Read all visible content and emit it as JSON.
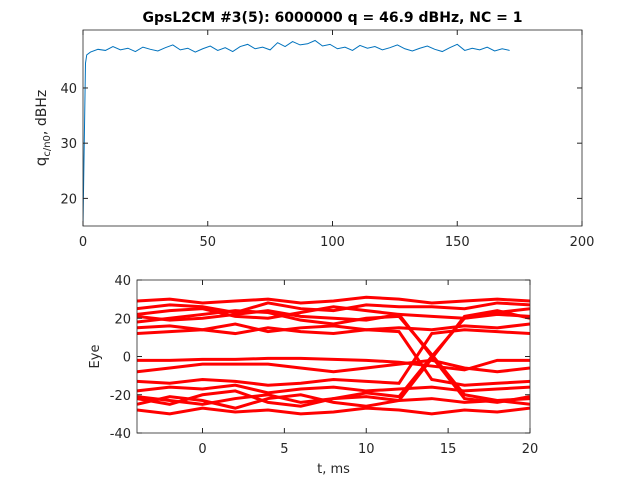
{
  "chart_data": [
    {
      "type": "line",
      "title": "GpsL2CM #3(5): 6000000 q = 46.9 dBHz,  NC = 1",
      "ylabel": {
        "main": "q",
        "sub": "c/n0",
        "rest": ", dBHz"
      },
      "color": "#0072bd",
      "x": [
        0,
        0.5,
        1,
        1.5,
        3,
        6,
        9,
        12,
        15,
        18,
        21,
        24,
        27,
        30,
        33,
        36,
        39,
        42,
        45,
        48,
        51,
        54,
        57,
        60,
        63,
        66,
        69,
        72,
        75,
        78,
        81,
        84,
        87,
        90,
        93,
        96,
        99,
        102,
        105,
        108,
        111,
        114,
        117,
        120,
        123,
        126,
        129,
        132,
        135,
        138,
        141,
        144,
        147,
        150,
        153,
        156,
        159,
        162,
        165,
        168,
        171
      ],
      "values": [
        15.5,
        30,
        44.5,
        46,
        46.5,
        47,
        46.8,
        47.5,
        46.9,
        47.2,
        46.6,
        47.4,
        47,
        46.7,
        47.3,
        47.8,
        46.9,
        47.2,
        46.5,
        47.1,
        47.6,
        46.8,
        47.3,
        46.6,
        47.5,
        47.9,
        47.1,
        47.4,
        46.9,
        48.2,
        47.5,
        48.4,
        47.8,
        48,
        48.6,
        47.6,
        47.9,
        47.1,
        47.4,
        46.8,
        47.7,
        47.2,
        47.5,
        46.9,
        47.3,
        47.8,
        47.1,
        46.7,
        47.2,
        47.6,
        47,
        46.6,
        47.3,
        47.9,
        46.8,
        47.2,
        46.9,
        47.4,
        46.7,
        47.1,
        46.8
      ],
      "xlim": [
        0,
        200
      ],
      "xticks": [
        0,
        50,
        100,
        150,
        200
      ],
      "ylim": [
        15,
        50.5
      ],
      "yticks": [
        20,
        30,
        40
      ]
    },
    {
      "type": "line",
      "xlabel": "t, ms",
      "ylabel": "Eye",
      "color": "#ff0000",
      "x": [
        -4,
        -2,
        0,
        2,
        4,
        6,
        8,
        10,
        12,
        14,
        16,
        18,
        20
      ],
      "series": [
        {
          "values": [
            22,
            24,
            25,
            21,
            20,
            23,
            26,
            24,
            22,
            0,
            -22,
            -24,
            -21
          ]
        },
        {
          "values": [
            18,
            20,
            22,
            24,
            23,
            19,
            17,
            20,
            21,
            1,
            -20,
            -23,
            -25
          ]
        },
        {
          "values": [
            -22,
            -25,
            -20,
            -18,
            -24,
            -26,
            -22,
            -19,
            -21,
            0,
            20,
            23,
            25
          ]
        },
        {
          "values": [
            -25,
            -21,
            -23,
            -27,
            -22,
            -20,
            -24,
            -26,
            -23,
            -1,
            21,
            24,
            20
          ]
        },
        {
          "values": [
            25,
            27,
            26,
            23,
            28,
            25,
            24,
            27,
            26,
            26,
            25,
            28,
            27
          ]
        },
        {
          "values": [
            15,
            16,
            14,
            17,
            13,
            15,
            16,
            14,
            15,
            14,
            16,
            15,
            17
          ]
        },
        {
          "values": [
            21,
            19,
            20,
            22,
            24,
            21,
            20,
            19,
            22,
            21,
            20,
            22,
            21
          ]
        },
        {
          "values": [
            -18,
            -16,
            -17,
            -15,
            -19,
            -17,
            -16,
            -18,
            -17,
            -16,
            -18,
            -17,
            -16
          ]
        },
        {
          "values": [
            -28,
            -30,
            -27,
            -29,
            -28,
            -30,
            -29,
            -27,
            -28,
            -30,
            -28,
            -29,
            -27
          ]
        },
        {
          "values": [
            -21,
            -23,
            -25,
            -22,
            -20,
            -24,
            -22,
            -21,
            -23,
            -22,
            -24,
            -23,
            -22
          ]
        },
        {
          "values": [
            12,
            13,
            14,
            12,
            15,
            13,
            12,
            14,
            13,
            -12,
            -15,
            -14,
            -13
          ]
        },
        {
          "values": [
            -13,
            -14,
            -12,
            -13,
            -15,
            -14,
            -12,
            -13,
            -14,
            12,
            14,
            13,
            12
          ]
        },
        {
          "values": [
            29,
            30,
            28,
            29,
            30,
            28,
            29,
            31,
            30,
            28,
            29,
            30,
            29
          ]
        },
        {
          "values": [
            -2,
            -2,
            -1.5,
            -1.5,
            -1,
            -1,
            -1.5,
            -2,
            -3,
            -5,
            -7,
            -2,
            -2
          ]
        },
        {
          "values": [
            -8,
            -6,
            -4,
            -4,
            -4,
            -6,
            -8,
            -6,
            -4,
            -2,
            -6,
            -8,
            -6
          ]
        }
      ],
      "xlim": [
        -4,
        20
      ],
      "xticks": [
        0,
        5,
        10,
        15,
        20
      ],
      "ylim": [
        -40,
        40
      ],
      "yticks": [
        -40,
        -20,
        0,
        20,
        40
      ]
    }
  ]
}
